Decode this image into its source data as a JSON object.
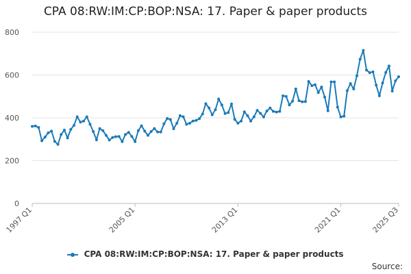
{
  "chart_data": {
    "type": "line",
    "title": "CPA 08:RW:IM:CP:BOP:NSA: 17. Paper & paper products",
    "xlabel": "",
    "ylabel": "",
    "x_start": "1997 Q1",
    "x_end": "2025 Q3",
    "x_tick_labels": [
      "1997 Q1",
      "2005 Q1",
      "2013 Q1",
      "2021 Q1",
      "2025 Q3"
    ],
    "ylim": [
      0,
      800
    ],
    "y_ticks": [
      0,
      200,
      400,
      600,
      800
    ],
    "grid": true,
    "legend_position": "bottom",
    "color": "#1a7ab8",
    "series": [
      {
        "name": "CPA 08:RW:IM:CP:BOP:NSA: 17. Paper & paper products",
        "values": [
          360,
          362,
          355,
          293,
          310,
          330,
          338,
          290,
          276,
          322,
          343,
          306,
          346,
          365,
          405,
          380,
          385,
          405,
          370,
          336,
          297,
          350,
          340,
          318,
          296,
          308,
          312,
          313,
          289,
          322,
          332,
          313,
          289,
          340,
          363,
          338,
          318,
          336,
          350,
          334,
          334,
          372,
          397,
          392,
          349,
          375,
          410,
          405,
          370,
          375,
          385,
          388,
          396,
          418,
          466,
          446,
          414,
          438,
          488,
          460,
          420,
          425,
          465,
          393,
          375,
          385,
          428,
          410,
          385,
          405,
          435,
          421,
          404,
          432,
          446,
          430,
          427,
          430,
          503,
          500,
          460,
          478,
          535,
          480,
          475,
          476,
          570,
          550,
          555,
          518,
          544,
          497,
          433,
          568,
          568,
          450,
          404,
          408,
          527,
          560,
          535,
          597,
          674,
          715,
          623,
          611,
          615,
          553,
          503,
          563,
          612,
          642,
          525,
          573,
          592
        ]
      }
    ]
  },
  "legend": {
    "label": "CPA 08:RW:IM:CP:BOP:NSA: 17. Paper & paper products"
  },
  "footer": {
    "source": "Source:"
  }
}
